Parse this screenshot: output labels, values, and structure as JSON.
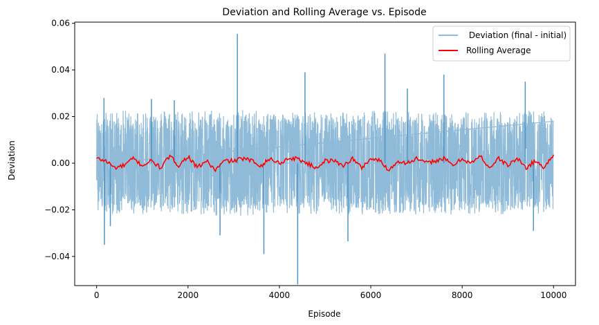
{
  "chart_data": {
    "type": "line",
    "title": "Deviation and Rolling Average vs. Episode",
    "xlabel": "Episode",
    "ylabel": "Deviation",
    "xlim": [
      -480,
      10480
    ],
    "ylim": [
      -0.0525,
      0.0605
    ],
    "x_ticks": [
      0,
      2000,
      4000,
      6000,
      8000,
      10000
    ],
    "x_tick_labels": [
      "0",
      "2000",
      "4000",
      "6000",
      "8000",
      "10000"
    ],
    "y_ticks": [
      -0.04,
      -0.02,
      0.0,
      0.02,
      0.04,
      0.06
    ],
    "y_tick_labels": [
      "−0.04",
      "−0.02",
      "0.00",
      "0.02",
      "0.04",
      "0.06"
    ],
    "grid": false,
    "legend_position": "upper right",
    "series": [
      {
        "name": " Deviation (final - initial)",
        "color": "#1f77b4",
        "alpha": 0.5,
        "episodes": 10000,
        "band_envelope": {
          "x": [
            0,
            1000,
            2000,
            3000,
            4000,
            5000,
            6000,
            7000,
            8000,
            9000,
            10000
          ],
          "upper": [
            0.022,
            0.023,
            0.023,
            0.023,
            0.022,
            0.022,
            0.023,
            0.022,
            0.022,
            0.023,
            0.022
          ],
          "lower": [
            -0.022,
            -0.022,
            -0.022,
            -0.023,
            -0.022,
            -0.022,
            -0.022,
            -0.022,
            -0.022,
            -0.022,
            -0.022
          ]
        },
        "spikes": [
          {
            "x": 160,
            "y": 0.028
          },
          {
            "x": 170,
            "y": -0.035
          },
          {
            "x": 300,
            "y": -0.027
          },
          {
            "x": 1200,
            "y": 0.0275
          },
          {
            "x": 1700,
            "y": 0.027
          },
          {
            "x": 2700,
            "y": -0.031
          },
          {
            "x": 3080,
            "y": 0.0555
          },
          {
            "x": 3660,
            "y": -0.039
          },
          {
            "x": 4400,
            "y": -0.052
          },
          {
            "x": 4560,
            "y": 0.039
          },
          {
            "x": 5500,
            "y": -0.0335
          },
          {
            "x": 6310,
            "y": 0.047
          },
          {
            "x": 6800,
            "y": 0.032
          },
          {
            "x": 7600,
            "y": 0.038
          },
          {
            "x": 9380,
            "y": 0.035
          },
          {
            "x": 9560,
            "y": -0.029
          }
        ]
      },
      {
        "name": "Rolling Average",
        "color": "#ff0000",
        "x": [
          0,
          200,
          400,
          600,
          800,
          1000,
          1200,
          1400,
          1600,
          1800,
          2000,
          2200,
          2400,
          2600,
          2800,
          3000,
          3200,
          3400,
          3600,
          3800,
          4000,
          4200,
          4400,
          4600,
          4800,
          5000,
          5200,
          5400,
          5600,
          5800,
          6000,
          6200,
          6400,
          6600,
          6800,
          7000,
          7200,
          7400,
          7600,
          7800,
          8000,
          8200,
          8400,
          8600,
          8800,
          9000,
          9200,
          9400,
          9600,
          9800,
          10000
        ],
        "y": [
          0.002,
          0.001,
          -0.002,
          -0.001,
          0.002,
          -0.001,
          0.001,
          -0.002,
          0.003,
          -0.001,
          0.003,
          -0.002,
          0.001,
          -0.003,
          0.001,
          0.001,
          0.002,
          0.001,
          -0.001,
          0.002,
          0.0,
          0.002,
          0.002,
          0.0,
          -0.002,
          0.001,
          0.001,
          -0.001,
          0.002,
          -0.002,
          0.002,
          0.001,
          -0.003,
          0.001,
          0.0,
          0.002,
          0.0,
          0.001,
          0.002,
          -0.001,
          0.002,
          0.0,
          0.003,
          -0.002,
          0.002,
          -0.001,
          0.002,
          -0.002,
          0.001,
          -0.002,
          0.004
        ]
      }
    ]
  }
}
